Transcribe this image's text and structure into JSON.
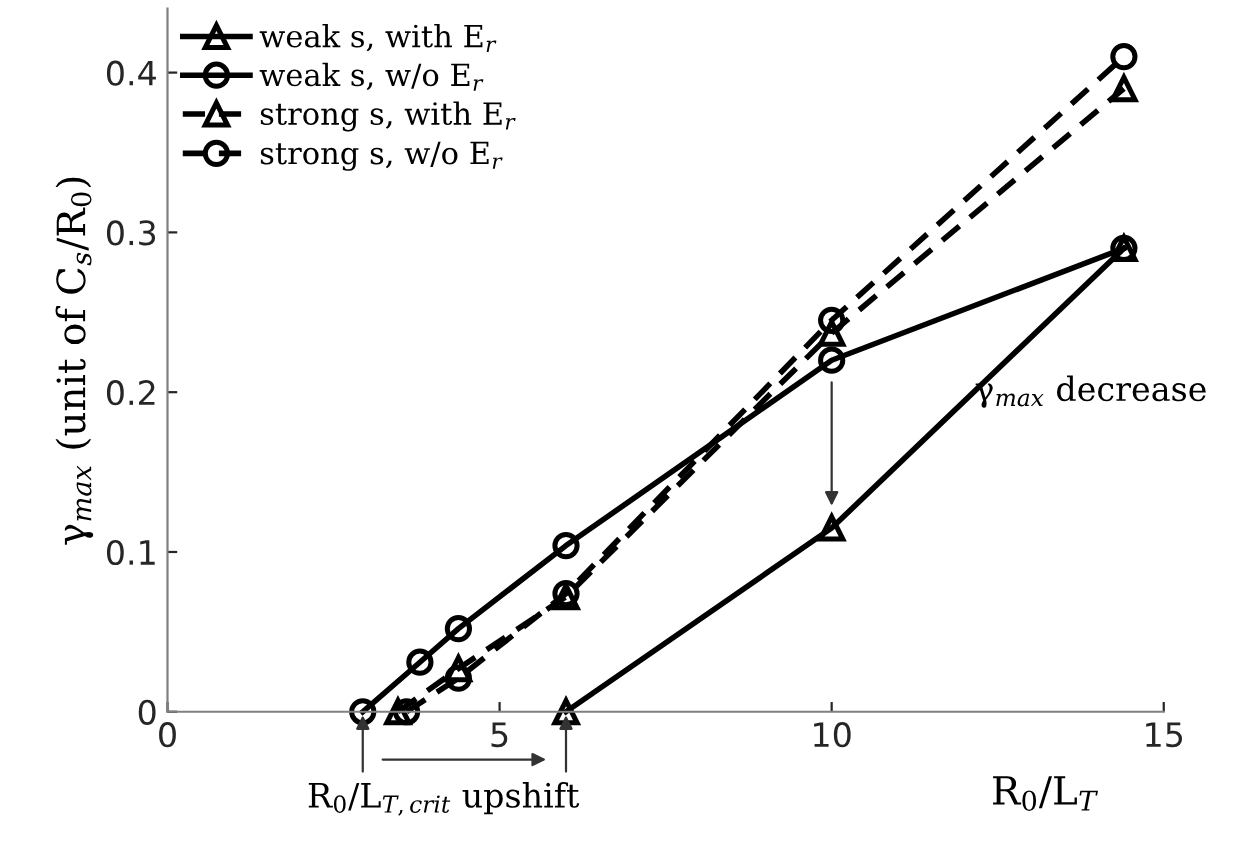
{
  "chart_data": {
    "type": "line",
    "xlabel": "R$_{0}$/L$_{T}$",
    "ylabel": "γ$_{max}$ (unit of C$_{s}$/R$_{0}$)",
    "xlim": [
      0,
      15
    ],
    "ylim": [
      0,
      0.44
    ],
    "xticks": [
      0,
      5,
      10,
      15
    ],
    "yticks": [
      0,
      0.1,
      0.2,
      0.3,
      0.4
    ],
    "grid": false,
    "legend": "top left",
    "series": [
      {
        "name": "weak s, with E$_{r}$",
        "color": "#000000",
        "marker": "triangle",
        "line_style": "solid",
        "x": [
          6,
          10,
          14.4
        ],
        "values": [
          0,
          0.115,
          0.29
        ]
      },
      {
        "name": "weak s, w/o E$_{r}$",
        "color": "#000000",
        "marker": "circle",
        "line_style": "solid",
        "x": [
          2.94,
          3.8,
          4.38,
          6,
          10,
          14.4
        ],
        "values": [
          0,
          0.031,
          0.052,
          0.104,
          0.22,
          0.29
        ]
      },
      {
        "name": "strong s, with E$_{r}$",
        "color": "#000000",
        "marker": "triangle",
        "line_style": "dashed",
        "x": [
          3.47,
          4.38,
          6,
          10,
          14.4
        ],
        "values": [
          0,
          0.027,
          0.072,
          0.237,
          0.39
        ]
      },
      {
        "name": "strong s, w/o E$_{r}$",
        "color": "#000000",
        "marker": "circle",
        "line_style": "dashed",
        "x": [
          3.6,
          4.38,
          6,
          10,
          14.4
        ],
        "values": [
          0,
          0.021,
          0.074,
          0.245,
          0.41
        ]
      }
    ],
    "annotations": [
      "γ$_{max}$ decrease",
      "R$_{0}$/L$_{T,crit}$ upshift"
    ]
  }
}
